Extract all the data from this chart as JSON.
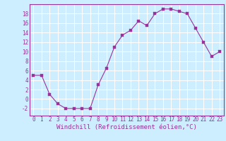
{
  "x": [
    0,
    1,
    2,
    3,
    4,
    5,
    6,
    7,
    8,
    9,
    10,
    11,
    12,
    13,
    14,
    15,
    16,
    17,
    18,
    19,
    20,
    21,
    22,
    23
  ],
  "y": [
    5,
    5,
    1,
    -1,
    -2,
    -2,
    -2,
    -2,
    3,
    6.5,
    11,
    13.5,
    14.5,
    16.5,
    15.5,
    18,
    19,
    19,
    18.5,
    18,
    15,
    12,
    9,
    10
  ],
  "line_color": "#993399",
  "marker_color": "#993399",
  "bg_color": "#cceeff",
  "grid_color": "#ffffff",
  "xlabel": "Windchill (Refroidissement éolien,°C)",
  "xlim": [
    -0.5,
    23.5
  ],
  "ylim": [
    -3.5,
    20
  ],
  "yticks": [
    -2,
    0,
    2,
    4,
    6,
    8,
    10,
    12,
    14,
    16,
    18
  ],
  "xticks": [
    0,
    1,
    2,
    3,
    4,
    5,
    6,
    7,
    8,
    9,
    10,
    11,
    12,
    13,
    14,
    15,
    16,
    17,
    18,
    19,
    20,
    21,
    22,
    23
  ],
  "font_color": "#993399",
  "xlabel_fontsize": 6.5,
  "tick_fontsize": 5.5,
  "line_width": 0.8,
  "marker_size": 2.5
}
